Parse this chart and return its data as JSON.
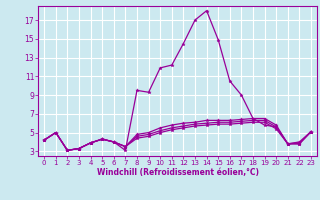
{
  "title": "",
  "xlabel": "Windchill (Refroidissement éolien,°C)",
  "background_color": "#cce9f0",
  "grid_color": "#ffffff",
  "line_color": "#990099",
  "x_values": [
    0,
    1,
    2,
    3,
    4,
    5,
    6,
    7,
    8,
    9,
    10,
    11,
    12,
    13,
    14,
    15,
    16,
    17,
    18,
    19,
    20,
    21,
    22,
    23
  ],
  "series": [
    [
      4.2,
      5.0,
      3.1,
      3.3,
      3.9,
      4.3,
      4.0,
      3.1,
      9.5,
      9.3,
      11.9,
      12.2,
      14.5,
      17.0,
      18.0,
      14.9,
      10.5,
      9.0,
      6.5,
      5.8,
      5.6,
      3.8,
      3.8,
      5.1
    ],
    [
      4.2,
      5.0,
      3.1,
      3.3,
      3.9,
      4.3,
      4.0,
      3.5,
      4.8,
      5.0,
      5.5,
      5.8,
      6.0,
      6.1,
      6.3,
      6.3,
      6.3,
      6.4,
      6.5,
      6.5,
      5.8,
      3.8,
      4.0,
      5.1
    ],
    [
      4.2,
      5.0,
      3.1,
      3.3,
      3.9,
      4.3,
      4.0,
      3.5,
      4.6,
      4.8,
      5.2,
      5.5,
      5.7,
      5.9,
      6.0,
      6.1,
      6.1,
      6.2,
      6.3,
      6.3,
      5.6,
      3.8,
      3.9,
      5.1
    ],
    [
      4.2,
      5.0,
      3.1,
      3.3,
      3.9,
      4.3,
      4.0,
      3.5,
      4.4,
      4.6,
      5.0,
      5.3,
      5.5,
      5.7,
      5.8,
      5.9,
      5.9,
      6.0,
      6.1,
      6.1,
      5.4,
      3.8,
      3.8,
      5.1
    ]
  ],
  "yticks": [
    3,
    5,
    7,
    9,
    11,
    13,
    15,
    17
  ],
  "ylim": [
    2.5,
    18.5
  ],
  "xlim": [
    -0.5,
    23.5
  ],
  "xticks": [
    0,
    1,
    2,
    3,
    4,
    5,
    6,
    7,
    8,
    9,
    10,
    11,
    12,
    13,
    14,
    15,
    16,
    17,
    18,
    19,
    20,
    21,
    22,
    23
  ],
  "xlabel_fontsize": 5.5,
  "tick_fontsize": 5.0,
  "ytick_fontsize": 5.5,
  "linewidth": 0.9,
  "markersize": 2.5
}
